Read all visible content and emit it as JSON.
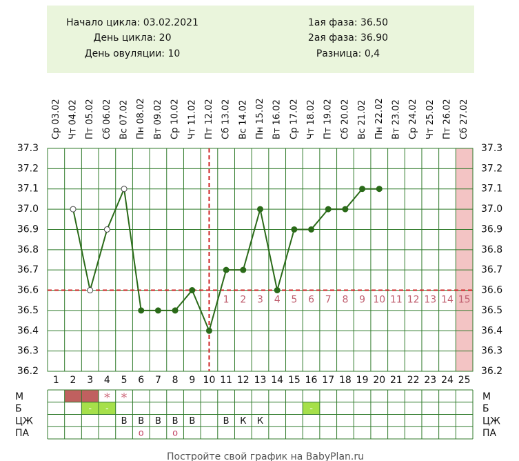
{
  "header": {
    "left": [
      "Начало цикла: 03.02.2021",
      "День цикла: 20",
      "День овуляции: 10"
    ],
    "right": [
      "1ая фаза: 36.50",
      "2ая фаза: 36.90",
      "Разница: 0,4"
    ]
  },
  "chart_data": {
    "type": "line",
    "categories": [
      1,
      2,
      3,
      4,
      5,
      6,
      7,
      8,
      9,
      10,
      11,
      12,
      13,
      14,
      15,
      16,
      17,
      18,
      19,
      20,
      21,
      22,
      23,
      24,
      25
    ],
    "dates": [
      "Ср 03.02",
      "Чт 04.02",
      "Пт 05.02",
      "Сб 06.02",
      "Вс 07.02",
      "Пн 08.02",
      "Вт 09.02",
      "Ср 10.02",
      "Чт 11.02",
      "Пт 12.02",
      "Сб 13.02",
      "Вс 14.02",
      "Пн 15.02",
      "Вт 16.02",
      "Ср 17.02",
      "Чт 18.02",
      "Пт 19.02",
      "Сб 20.02",
      "Вс 21.02",
      "Пн 22.02",
      "Вт 23.02",
      "Ср 24.02",
      "Чт 25.02",
      "Пт 26.02",
      "Сб 27.02"
    ],
    "series": [
      {
        "color": "#2a6a18",
        "values": [
          null,
          37.0,
          36.6,
          36.9,
          37.1,
          36.5,
          36.5,
          36.5,
          36.6,
          36.4,
          36.7,
          36.7,
          37.0,
          36.6,
          36.9,
          36.9,
          37.0,
          37.0,
          37.1,
          37.1,
          null,
          null,
          null,
          null,
          null
        ]
      }
    ],
    "hollow_days": [
      2,
      3,
      4,
      5
    ],
    "ylim": [
      36.2,
      37.3
    ],
    "yticks": [
      36.2,
      36.3,
      36.4,
      36.5,
      36.6,
      36.7,
      36.8,
      36.9,
      {
        "value": 37,
        "label": "37.0"
      },
      37.1,
      37.2,
      37.3
    ],
    "grid": true,
    "cover_line": 36.6,
    "ovulation_day": 10,
    "luteal_days": [
      1,
      2,
      3,
      4,
      5,
      6,
      7,
      8,
      9,
      10,
      11,
      12,
      13,
      14,
      15
    ],
    "period_forecast_days": [
      25
    ]
  },
  "table": {
    "rows": [
      {
        "label": "М",
        "entries": [
          {
            "days": [
              2,
              3
            ],
            "color": "#c0605f"
          },
          {
            "days": [
              4
            ],
            "text": "*"
          },
          {
            "days": [
              5
            ],
            "text": "*"
          }
        ]
      },
      {
        "label": "Б",
        "entries": [
          {
            "days": [
              3
            ],
            "text": "-",
            "color": "#a6e04a"
          },
          {
            "days": [
              4
            ],
            "text": "-",
            "color": "#a6e04a"
          },
          {
            "days": [
              16
            ],
            "text": "-",
            "color": "#a6e04a"
          }
        ]
      },
      {
        "label": "ЦЖ",
        "entries": [
          {
            "days": [
              5
            ],
            "text": "В"
          },
          {
            "days": [
              6
            ],
            "text": "В"
          },
          {
            "days": [
              7
            ],
            "text": "В"
          },
          {
            "days": [
              8
            ],
            "text": "В"
          },
          {
            "days": [
              9
            ],
            "text": "В"
          },
          {
            "days": [
              11
            ],
            "text": "В"
          },
          {
            "days": [
              12
            ],
            "text": "К"
          },
          {
            "days": [
              13
            ],
            "text": "К"
          }
        ]
      },
      {
        "label": "ПА",
        "entries": [
          {
            "days": [
              6
            ],
            "text": "o"
          },
          {
            "days": [
              8
            ],
            "text": "o"
          }
        ]
      }
    ]
  },
  "footer": "Постройте свой график на BabyPlan.ru"
}
